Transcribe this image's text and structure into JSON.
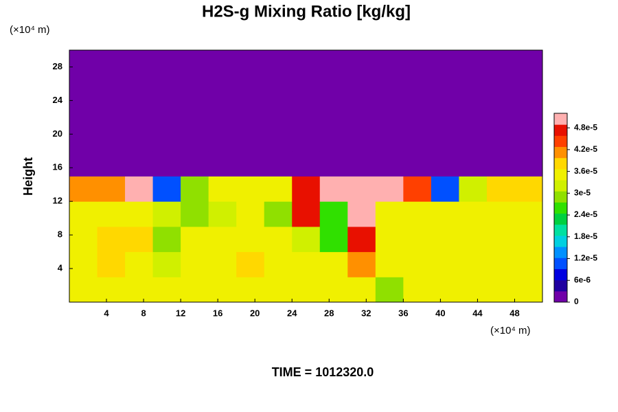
{
  "chart_data": {
    "type": "heatmap",
    "title": "H2S-g Mixing Ratio [kg/kg]",
    "y_unit": "(×10⁴ m)",
    "x_unit": "(×10⁴ m)",
    "ylabel": "Height",
    "footer": "TIME = 1012320.0",
    "xlim": [
      0,
      51
    ],
    "ylim": [
      0,
      30
    ],
    "xticks": [
      4,
      8,
      12,
      16,
      20,
      24,
      28,
      32,
      36,
      40,
      44,
      48
    ],
    "yticks": [
      4,
      8,
      12,
      16,
      20,
      24,
      28
    ],
    "x": [
      1.5,
      4.5,
      7.5,
      10.5,
      13.5,
      16.5,
      19.5,
      22.5,
      25.5,
      28.5,
      31.5,
      34.5,
      37.5,
      40.5,
      43.5,
      46.5,
      49.5
    ],
    "y": [
      1.5,
      4.5,
      7.5,
      10.5,
      13.5,
      16.5,
      19.5,
      22.5,
      25.5,
      28.5
    ],
    "z": [
      [
        3.6e-05,
        3.6e-05,
        3.6e-05,
        3.5e-05,
        3.6e-05,
        3.6e-05,
        3.6e-05,
        3.6e-05,
        3.6e-05,
        3.6e-05,
        3.6e-05,
        3e-05,
        3.6e-05,
        3.4e-05,
        3.6e-05,
        3.6e-05,
        3.6e-05
      ],
      [
        3.6e-05,
        3.9e-05,
        3.6e-05,
        3.3e-05,
        3.6e-05,
        3.6e-05,
        3.8e-05,
        3.6e-05,
        3.6e-05,
        3.4e-05,
        4.2e-05,
        3.6e-05,
        3.5e-05,
        3.5e-05,
        3.4e-05,
        3.5e-05,
        3.5e-05
      ],
      [
        3.6e-05,
        3.9e-05,
        3.8e-05,
        3e-05,
        3.4e-05,
        3.6e-05,
        3.6e-05,
        3.4e-05,
        3.2e-05,
        2.7e-05,
        4.8e-05,
        3.6e-05,
        3.5e-05,
        3.4e-05,
        3.5e-05,
        3.5e-05,
        3.5e-05
      ],
      [
        3.6e-05,
        3.6e-05,
        3.5e-05,
        3.2e-05,
        3e-05,
        3.3e-05,
        3.4e-05,
        3e-05,
        4.8e-05,
        2.6e-05,
        5.2e-05,
        3.5e-05,
        3.4e-05,
        3.4e-05,
        3.4e-05,
        3.4e-05,
        3.4e-05
      ],
      [
        4e-05,
        4.2e-05,
        5.2e-05,
        1.2e-05,
        2.8e-05,
        3.4e-05,
        3.5e-05,
        3.6e-05,
        4.8e-05,
        5.2e-05,
        5.2e-05,
        5e-05,
        4.5e-05,
        1.2e-05,
        3.3e-05,
        3.8e-05,
        3.8e-05
      ],
      [
        0,
        0,
        0,
        0,
        0,
        0,
        0,
        0,
        0,
        0,
        0,
        0,
        0,
        0,
        0,
        0,
        0
      ],
      [
        0,
        0,
        0,
        0,
        0,
        0,
        0,
        0,
        0,
        0,
        0,
        0,
        0,
        0,
        0,
        0,
        0
      ],
      [
        0,
        0,
        0,
        0,
        0,
        0,
        0,
        0,
        0,
        0,
        0,
        0,
        0,
        0,
        0,
        0,
        0
      ],
      [
        0,
        0,
        0,
        0,
        0,
        0,
        0,
        0,
        0,
        0,
        0,
        0,
        0,
        0,
        0,
        0,
        0
      ],
      [
        0,
        0,
        0,
        0,
        0,
        0,
        0,
        0,
        0,
        0,
        0,
        0,
        0,
        0,
        0,
        0,
        0
      ]
    ],
    "clim": [
      0,
      5.2e-05
    ],
    "cticks": [
      0,
      {
        "value": 6e-06,
        "label": "6e-6"
      },
      {
        "value": 1.2e-05,
        "label": "1.2e-5"
      },
      {
        "value": 1.8e-05,
        "label": "1.8e-5"
      },
      {
        "value": 2.4e-05,
        "label": "2.4e-5"
      },
      {
        "value": 3e-05,
        "label": "3e-5"
      },
      {
        "value": 3.6e-05,
        "label": "3.6e-5"
      },
      {
        "value": 4.2e-05,
        "label": "4.2e-5"
      },
      {
        "value": 4.8e-05,
        "label": "4.8e-5"
      }
    ],
    "colormap": [
      "#7000a8",
      "#2000a0",
      "#0000e0",
      "#0050ff",
      "#0090ff",
      "#00d0e0",
      "#00e0a0",
      "#00d040",
      "#30e000",
      "#90e000",
      "#d0f000",
      "#f0f000",
      "#ffd800",
      "#ff9000",
      "#ff4000",
      "#e81000",
      "#ffb0b0"
    ]
  }
}
